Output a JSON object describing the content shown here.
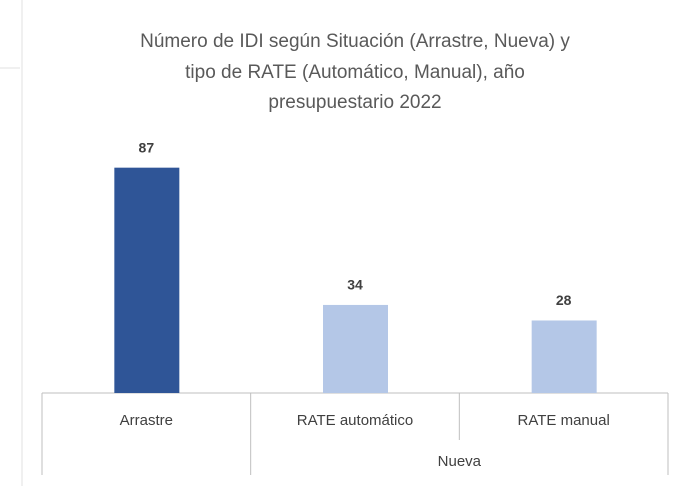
{
  "chart_data": {
    "type": "bar",
    "title": [
      "Número de IDI según Situación (Arrastre, Nueva) y",
      "tipo de RATE (Automático, Manual), año",
      "presupuestario 2022"
    ],
    "categories": [
      "Arrastre",
      "RATE automático",
      "RATE manual"
    ],
    "category_groups": [
      null,
      "Nueva",
      "Nueva"
    ],
    "values": [
      87,
      34,
      28
    ],
    "colors": [
      "#2f5597",
      "#b4c7e7",
      "#b4c7e7"
    ],
    "ylim": [
      0,
      100
    ]
  }
}
